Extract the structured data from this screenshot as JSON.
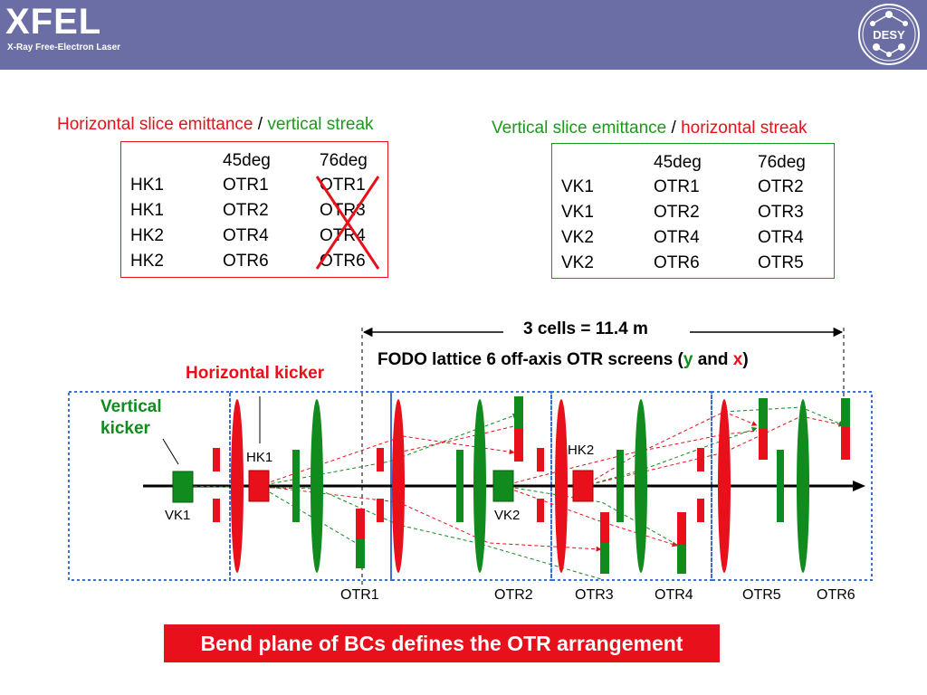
{
  "header": {
    "logo": "XFEL",
    "subtitle": "X-Ray Free-Electron Laser",
    "desy_logo": "DESY",
    "bg_color": "#6b6ea4"
  },
  "left_table": {
    "title_part1": "Horizontal slice emittance",
    "title_sep": "/",
    "title_part2": "vertical streak",
    "border_color": "#e8101a",
    "headers": [
      "",
      "45deg",
      "76deg"
    ],
    "rows": [
      [
        "HK1",
        "OTR1",
        "OTR1"
      ],
      [
        "HK1",
        "OTR2",
        "OTR3"
      ],
      [
        "HK2",
        "OTR4",
        "OTR4"
      ],
      [
        "HK2",
        "OTR6",
        "OTR6"
      ]
    ]
  },
  "right_table": {
    "title_part1": "Vertical slice emittance",
    "title_sep": "/",
    "title_part2": "horizontal streak",
    "border_color": "#1a9a1a",
    "headers": [
      "",
      "45deg",
      "76deg"
    ],
    "rows": [
      [
        "VK1",
        "OTR1",
        "OTR2"
      ],
      [
        "VK1",
        "OTR2",
        "OTR3"
      ],
      [
        "VK2",
        "OTR4",
        "OTR4"
      ],
      [
        "VK2",
        "OTR6",
        "OTR5"
      ]
    ]
  },
  "diagram": {
    "cells_label": "3 cells = 11.4 m",
    "fodo_label_part1": "FODO lattice 6 off-axis OTR  screens (",
    "fodo_y": "y",
    "fodo_and": " and ",
    "fodo_x": "x",
    "fodo_close": ")",
    "horizontal_kicker": "Horizontal kicker",
    "vertical_kicker": "Vertical kicker",
    "element_labels": {
      "hk1": "HK1",
      "hk2": "HK2",
      "vk1": "VK1",
      "vk2": "VK2"
    },
    "otr_labels": [
      "OTR1",
      "OTR2",
      "OTR3",
      "OTR4",
      "OTR5",
      "OTR6"
    ],
    "colors": {
      "red": "#e8101a",
      "green": "#118a1e",
      "cell_border": "#3b6fd0"
    }
  },
  "footer": {
    "banner": "Bend plane of BCs defines the OTR arrangement"
  }
}
